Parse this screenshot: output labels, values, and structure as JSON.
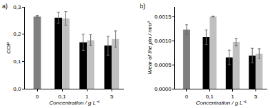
{
  "chart_data": [
    {
      "type": "bar",
      "title": "a)",
      "x_label": "Concentration / g L⁻¹",
      "y_label": "COF",
      "categories": [
        "0",
        "0,1",
        "1",
        "5"
      ],
      "series": [
        {
          "color": "#7f7f7f",
          "values": [
            0.265,
            null,
            null,
            null
          ],
          "errors": [
            0.003,
            null,
            null,
            null
          ]
        },
        {
          "color": "#000000",
          "values": [
            null,
            0.26,
            0.17,
            0.158
          ],
          "errors": [
            null,
            0.02,
            0.03,
            0.035
          ]
        },
        {
          "color": "#c0c0c0",
          "values": [
            null,
            0.258,
            0.178,
            0.182
          ],
          "errors": [
            null,
            0.025,
            0.02,
            0.03
          ]
        }
      ],
      "ylim": [
        0,
        0.3
      ],
      "yticks": [
        {
          "value": 0,
          "label": "0,0"
        },
        {
          "value": 0.1,
          "label": "0,1"
        },
        {
          "value": 0.2,
          "label": "0,2"
        },
        {
          "value": 0.3,
          "label": "0,3"
        }
      ],
      "grid": false
    },
    {
      "type": "bar",
      "title": "b)",
      "x_label": "Concentration / g L⁻¹",
      "y_label": "Wear of the pin / mm³",
      "categories": [
        "0",
        "0,1",
        "1",
        "5"
      ],
      "series": [
        {
          "color": "#7f7f7f",
          "values": [
            0.00123,
            null,
            null,
            null
          ],
          "errors": [
            0.0001,
            null,
            null,
            null
          ]
        },
        {
          "color": "#000000",
          "values": [
            null,
            0.00107,
            0.00065,
            0.00069
          ],
          "errors": [
            null,
            0.00015,
            0.00015,
            0.00015
          ]
        },
        {
          "color": "#c0c0c0",
          "values": [
            null,
            0.0015,
            0.00097,
            0.00073
          ],
          "errors": [
            null,
            1e-05,
            8e-05,
            0.0001
          ]
        }
      ],
      "ylim": [
        0,
        0.0017
      ],
      "yticks": [
        {
          "value": 0,
          "label": "0,0000"
        },
        {
          "value": 0.0005,
          "label": "0,0005"
        },
        {
          "value": 0.001,
          "label": "0,0010"
        },
        {
          "value": 0.0015,
          "label": "0,0015"
        }
      ],
      "grid": false
    }
  ]
}
